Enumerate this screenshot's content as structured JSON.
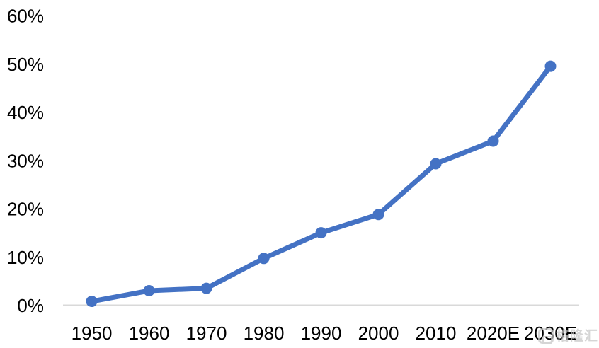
{
  "chart_data": {
    "type": "line",
    "categories": [
      "1950",
      "1960",
      "1970",
      "1980",
      "1990",
      "2000",
      "2010",
      "2020E",
      "2030E"
    ],
    "values": [
      0.8,
      3.0,
      3.5,
      9.7,
      15.0,
      18.8,
      29.3,
      34.0,
      49.5
    ],
    "series": [
      {
        "name": "",
        "values": [
          0.8,
          3.0,
          3.5,
          9.7,
          15.0,
          18.8,
          29.3,
          34.0,
          49.5
        ]
      }
    ],
    "title": "",
    "xlabel": "",
    "ylabel": "",
    "ylim": [
      0,
      60
    ],
    "ytick_step": 10,
    "ytick_labels": [
      "0%",
      "10%",
      "20%",
      "30%",
      "40%",
      "50%",
      "60%"
    ],
    "grid": false,
    "legend_position": "none",
    "series_color": "#4472C4",
    "axis_line_color": "#D9D9D9",
    "label_color": "#000000",
    "marker": "circle"
  },
  "watermark": {
    "logo_icon": "gelonghui-logo-icon",
    "text": "格隆汇"
  }
}
